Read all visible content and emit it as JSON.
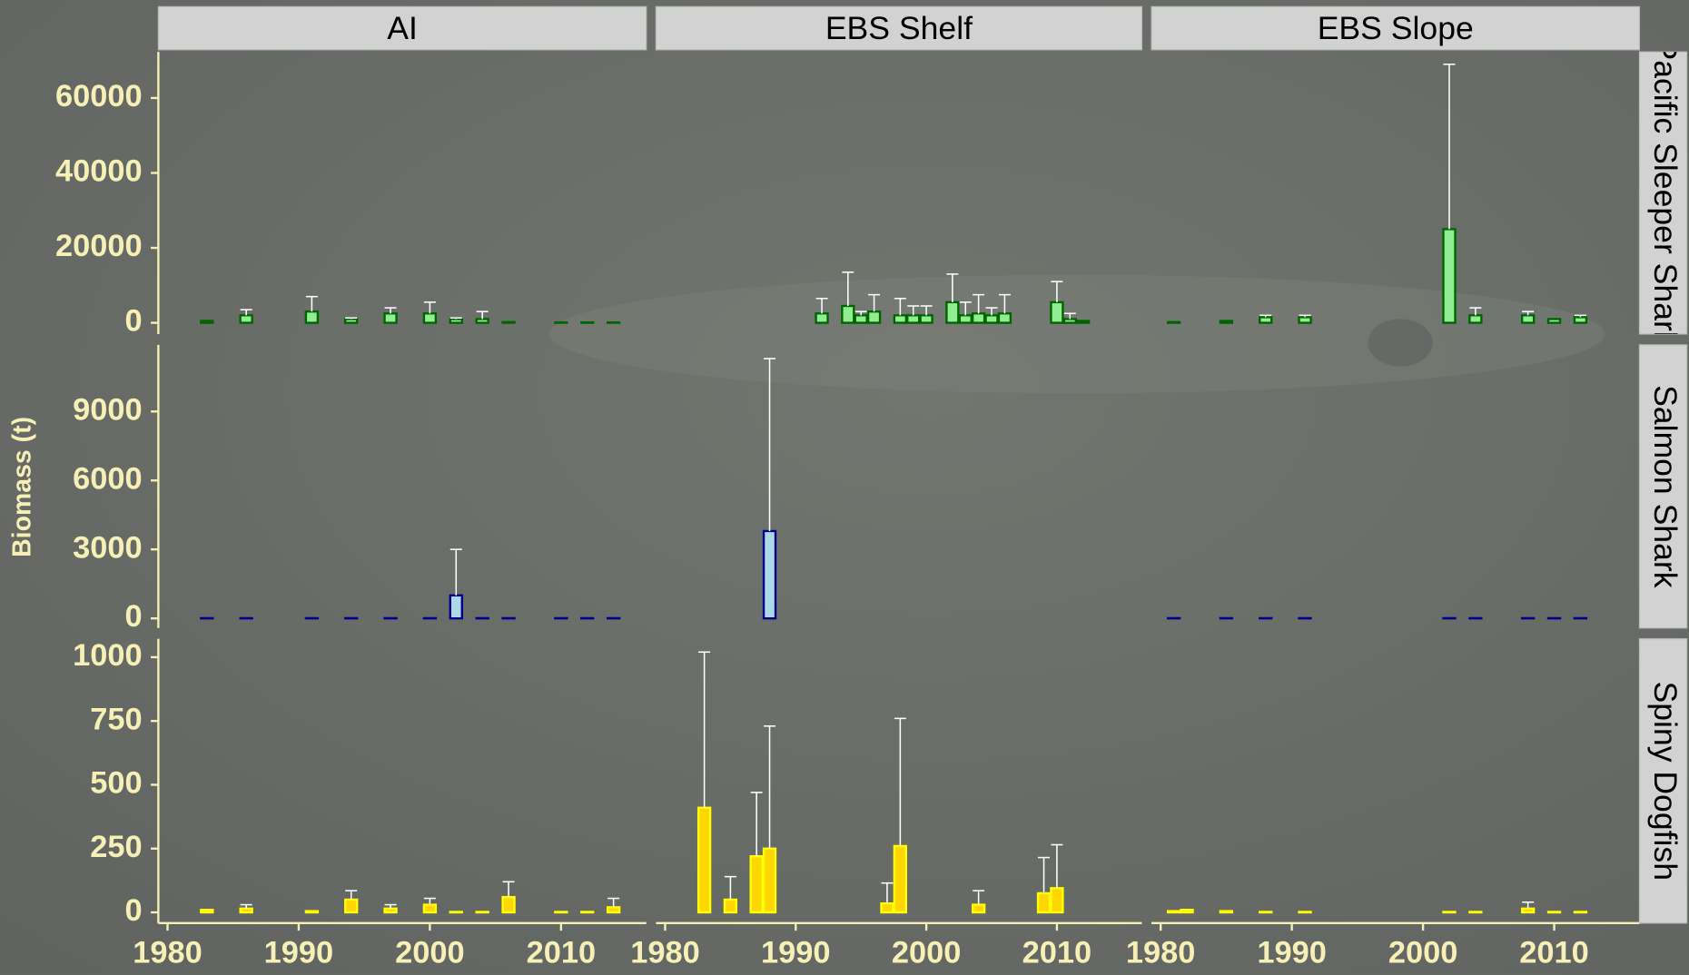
{
  "chart_data": {
    "type": "bar",
    "y_label": "Biomass (t)",
    "columns": [
      "AI",
      "EBS Shelf",
      "EBS Slope"
    ],
    "xlim": [
      1979.3,
      2016.5
    ],
    "xticks": [
      1980,
      1990,
      2000,
      2010
    ],
    "rows": [
      {
        "name": "Pacific Sleeper Shark",
        "fill": "#90ee90",
        "stroke": "#006400",
        "ylim": [
          -3000,
          72300
        ],
        "yticks": [
          0,
          20000,
          40000,
          60000
        ],
        "panels": [
          {
            "x": [
              1983,
              1986,
              1991,
              1994,
              1997,
              2000,
              2002,
              2004,
              2006,
              2010,
              2012,
              2014
            ],
            "values": [
              500,
              2000,
              3000,
              1000,
              2500,
              2500,
              1000,
              1000,
              200,
              100,
              100,
              100
            ],
            "errors": [
              null,
              1500,
              4000,
              300,
              1500,
              3000,
              300,
              2000,
              null,
              null,
              null,
              null
            ]
          },
          {
            "x": [
              1982,
              1983,
              1984,
              1985,
              1986,
              1987,
              1988,
              1989,
              1990,
              1991,
              1992,
              1993,
              1994,
              1995,
              1996,
              1997,
              1998,
              1999,
              2000,
              2001,
              2002,
              2003,
              2004,
              2005,
              2006,
              2007,
              2008,
              2009,
              2010,
              2011,
              2012,
              2013,
              2014,
              2015
            ],
            "values": [
              0,
              0,
              0,
              0,
              0,
              0,
              0,
              0,
              0,
              0,
              2500,
              0,
              4500,
              2000,
              3000,
              0,
              2000,
              2000,
              2000,
              0,
              5500,
              2000,
              2500,
              2000,
              2500,
              0,
              0,
              0,
              5500,
              1000,
              500,
              0,
              0,
              0
            ],
            "errors": [
              null,
              null,
              null,
              null,
              null,
              null,
              null,
              null,
              null,
              null,
              4000,
              null,
              9000,
              1000,
              4500,
              null,
              4500,
              2500,
              2500,
              null,
              7500,
              3500,
              5000,
              2000,
              5000,
              null,
              null,
              null,
              5500,
              1500,
              null,
              null,
              null,
              null
            ]
          },
          {
            "x": [
              1981,
              1985,
              1988,
              1991,
              2002,
              2004,
              2008,
              2010,
              2012
            ],
            "values": [
              200,
              500,
              1500,
              1500,
              25000,
              2000,
              2000,
              1000,
              1500
            ],
            "errors": [
              null,
              null,
              500,
              500,
              44000,
              2000,
              1000,
              null,
              500
            ]
          }
        ]
      },
      {
        "name": "Salmon Shark",
        "fill": "#add8e6",
        "stroke": "#00008b",
        "ylim": [
          -420,
          11900
        ],
        "yticks": [
          0,
          3000,
          6000,
          9000
        ],
        "panels": [
          {
            "x": [
              1983,
              1986,
              1991,
              1994,
              1997,
              2000,
              2002,
              2004,
              2006,
              2010,
              2012,
              2014
            ],
            "values": [
              10,
              10,
              10,
              10,
              10,
              10,
              1000,
              10,
              10,
              10,
              10,
              10
            ],
            "errors": [
              null,
              null,
              null,
              null,
              null,
              null,
              2000,
              null,
              null,
              null,
              null,
              null
            ]
          },
          {
            "x": [
              1982,
              1983,
              1984,
              1985,
              1986,
              1987,
              1988,
              1989,
              1990,
              1991,
              1992,
              1993,
              1994,
              1995,
              1996,
              1997,
              1998,
              1999,
              2000,
              2001,
              2002,
              2003,
              2004,
              2005,
              2006,
              2007,
              2008,
              2009,
              2010,
              2011,
              2012,
              2013,
              2014,
              2015
            ],
            "values": [
              0,
              0,
              0,
              0,
              0,
              0,
              3800,
              0,
              0,
              0,
              0,
              0,
              0,
              0,
              0,
              0,
              0,
              0,
              0,
              0,
              0,
              0,
              0,
              0,
              0,
              0,
              0,
              0,
              0,
              0,
              0,
              0,
              0,
              0
            ],
            "errors": [
              null,
              null,
              null,
              null,
              null,
              null,
              7500,
              null,
              null,
              null,
              null,
              null,
              null,
              null,
              null,
              null,
              null,
              null,
              null,
              null,
              null,
              null,
              null,
              null,
              null,
              null,
              null,
              null,
              null,
              null,
              null,
              null,
              null,
              null
            ]
          },
          {
            "x": [
              1981,
              1985,
              1988,
              1991,
              2002,
              2004,
              2008,
              2010,
              2012
            ],
            "values": [
              10,
              10,
              10,
              10,
              10,
              10,
              10,
              10,
              10
            ],
            "errors": [
              null,
              null,
              null,
              null,
              null,
              null,
              null,
              null,
              null
            ]
          }
        ]
      },
      {
        "name": "Spiny Dogfish",
        "fill": "#ffd700",
        "stroke": "#ffff00",
        "ylim": [
          -42,
          1072
        ],
        "yticks": [
          0,
          250,
          500,
          750,
          1000
        ],
        "panels": [
          {
            "x": [
              1983,
              1986,
              1991,
              1994,
              1997,
              2000,
              2002,
              2004,
              2006,
              2010,
              2012,
              2014
            ],
            "values": [
              10,
              15,
              5,
              50,
              15,
              30,
              2,
              2,
              60,
              2,
              2,
              20
            ],
            "errors": [
              null,
              15,
              null,
              35,
              15,
              25,
              null,
              null,
              60,
              null,
              null,
              35
            ]
          },
          {
            "x": [
              1982,
              1983,
              1984,
              1985,
              1986,
              1987,
              1988,
              1989,
              1990,
              1991,
              1992,
              1993,
              1994,
              1995,
              1996,
              1997,
              1998,
              1999,
              2000,
              2001,
              2002,
              2003,
              2004,
              2005,
              2006,
              2007,
              2008,
              2009,
              2010,
              2011,
              2012,
              2013,
              2014,
              2015
            ],
            "values": [
              0,
              410,
              0,
              50,
              0,
              220,
              250,
              0,
              0,
              0,
              0,
              0,
              0,
              0,
              0,
              35,
              260,
              0,
              0,
              0,
              0,
              0,
              30,
              0,
              0,
              0,
              0,
              75,
              95,
              0,
              0,
              0,
              0,
              0
            ],
            "errors": [
              null,
              610,
              null,
              90,
              null,
              250,
              480,
              null,
              null,
              null,
              null,
              null,
              null,
              null,
              null,
              80,
              500,
              null,
              null,
              null,
              null,
              null,
              55,
              null,
              null,
              null,
              null,
              140,
              170,
              null,
              null,
              null,
              null,
              null
            ]
          },
          {
            "x": [
              1981,
              1982,
              1985,
              1988,
              1991,
              2002,
              2004,
              2008,
              2010,
              2012
            ],
            "values": [
              5,
              10,
              5,
              2,
              2,
              2,
              2,
              15,
              2,
              2
            ],
            "errors": [
              null,
              null,
              null,
              null,
              null,
              null,
              null,
              25,
              null,
              null
            ]
          }
        ]
      }
    ]
  }
}
